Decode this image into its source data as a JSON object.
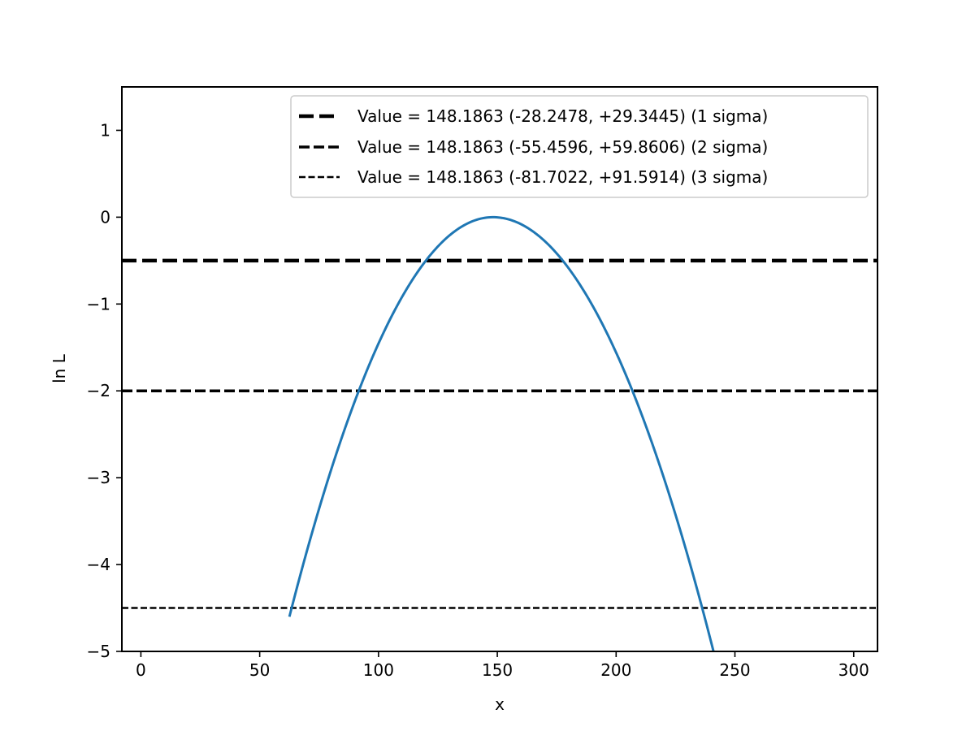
{
  "chart_data": {
    "type": "line",
    "title": "",
    "xlabel": "x",
    "ylabel": "ln L",
    "xlim": [
      -8,
      310
    ],
    "ylim": [
      -5,
      1.5
    ],
    "xticks": [
      0,
      50,
      100,
      150,
      200,
      250,
      300
    ],
    "xtick_labels": [
      "0",
      "50",
      "100",
      "150",
      "200",
      "250",
      "300"
    ],
    "yticks": [
      1,
      0,
      -1,
      -2,
      -3,
      -4,
      -5
    ],
    "ytick_labels": [
      "1",
      "0",
      "−1",
      "−2",
      "−3",
      "−4",
      "−5"
    ],
    "grid": false,
    "legend_position": "upper-right",
    "curve": {
      "color": "#1f77b4",
      "peak_x": 148.1863,
      "peak_y": 0,
      "x_start": 62.5,
      "x_end": 245
    },
    "hlines": [
      {
        "y": -0.5,
        "color": "#000000",
        "style": "dash-1sigma",
        "label": "Value = 148.1863 (-28.2478, +29.3445) (1 sigma)"
      },
      {
        "y": -2.0,
        "color": "#000000",
        "style": "dash-2sigma",
        "label": "Value = 148.1863 (-55.4596, +59.8606) (2 sigma)"
      },
      {
        "y": -4.5,
        "color": "#000000",
        "style": "dash-3sigma",
        "label": "Value = 148.1863 (-81.7022, +91.5914) (3 sigma)"
      }
    ]
  }
}
